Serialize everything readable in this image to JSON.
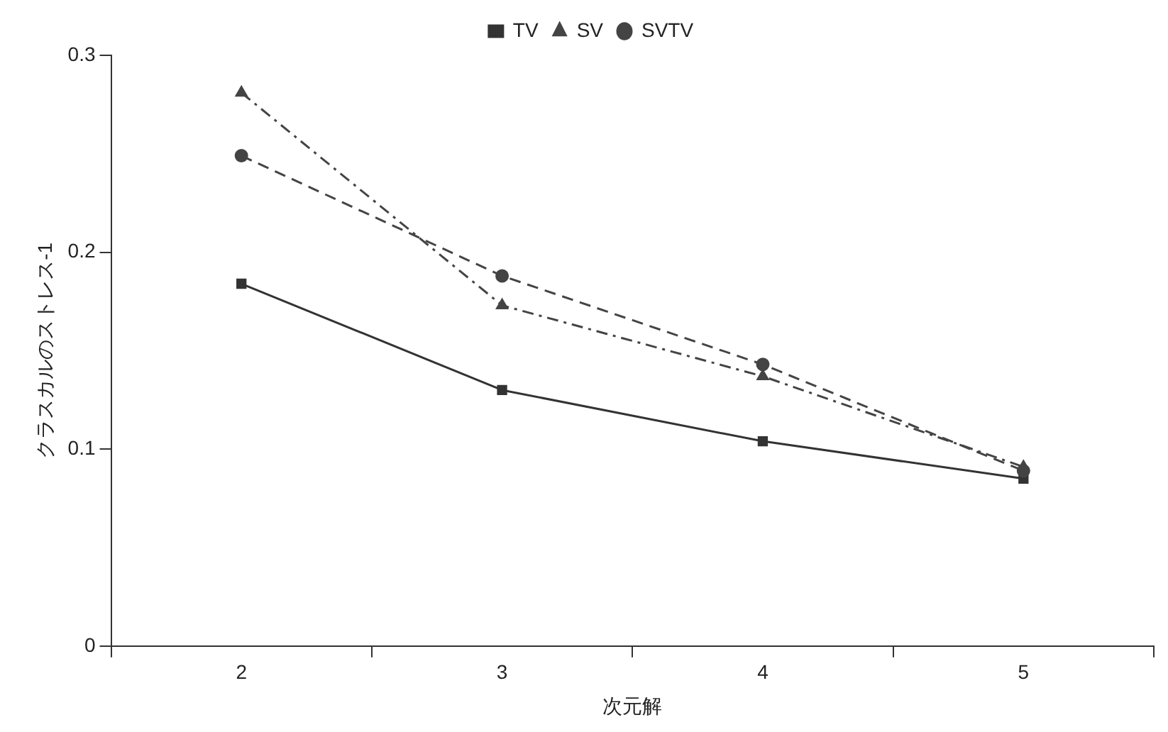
{
  "chart_data": {
    "type": "line",
    "xlabel": "次元解",
    "ylabel": "クラスカルのストレス-1",
    "categories": [
      "2",
      "3",
      "4",
      "5"
    ],
    "series": [
      {
        "name": "TV",
        "color": "#333333",
        "values": [
          0.184,
          0.13,
          0.104,
          0.085
        ],
        "marker": "square",
        "line_style": "solid"
      },
      {
        "name": "SV",
        "color": "#444444",
        "values": [
          0.281,
          0.173,
          0.137,
          0.091
        ],
        "marker": "triangle",
        "line_style": "dashdot"
      },
      {
        "name": "SVTV",
        "color": "#444444",
        "values": [
          0.249,
          0.188,
          0.143,
          0.089
        ],
        "marker": "circle",
        "line_style": "dashed"
      }
    ],
    "ylim": [
      0,
      0.3
    ],
    "yticks": [
      0,
      0.1,
      0.2,
      0.3
    ],
    "grid": false,
    "legend": "top"
  }
}
